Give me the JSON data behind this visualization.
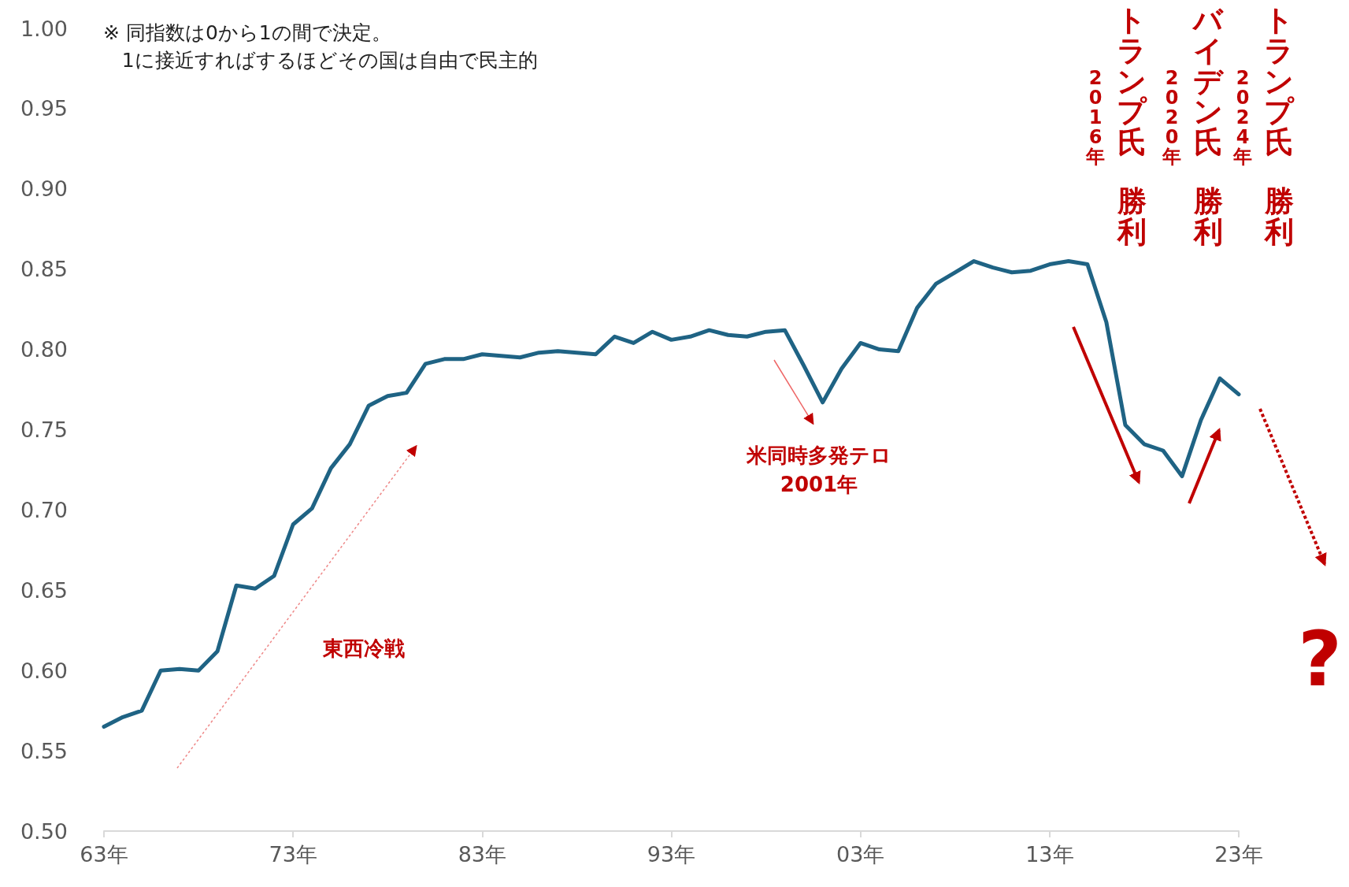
{
  "chart_data": {
    "type": "line",
    "categories": [
      "63年",
      null,
      null,
      null,
      null,
      null,
      null,
      null,
      null,
      null,
      "73年",
      null,
      null,
      null,
      null,
      null,
      null,
      null,
      null,
      null,
      "83年",
      null,
      null,
      null,
      null,
      null,
      null,
      null,
      null,
      null,
      "93年",
      null,
      null,
      null,
      null,
      null,
      null,
      null,
      null,
      null,
      "03年",
      null,
      null,
      null,
      null,
      null,
      null,
      null,
      null,
      null,
      "13年",
      null,
      null,
      null,
      null,
      null,
      null,
      null,
      null,
      null,
      "23年"
    ],
    "series": [
      {
        "color": "#1f6384",
        "values": [
          0.565,
          0.571,
          0.575,
          0.6,
          0.601,
          0.6,
          0.612,
          0.653,
          0.651,
          0.659,
          0.691,
          0.701,
          0.726,
          0.741,
          0.765,
          0.771,
          0.773,
          0.791,
          0.794,
          0.794,
          0.797,
          0.796,
          0.795,
          0.798,
          0.799,
          0.798,
          0.797,
          0.808,
          0.804,
          0.811,
          0.806,
          0.808,
          0.812,
          0.809,
          0.808,
          0.811,
          0.812,
          0.79,
          0.767,
          0.788,
          0.804,
          0.8,
          0.799,
          0.826,
          0.841,
          0.848,
          0.855,
          0.851,
          0.848,
          0.849,
          0.853,
          0.855,
          0.853,
          0.817,
          0.753,
          0.741,
          0.737,
          0.721,
          0.756,
          0.782,
          0.772
        ]
      }
    ],
    "ylim": [
      0.5,
      1
    ],
    "yticks": [
      {
        "value": 0.5,
        "label": "0.50"
      },
      {
        "value": 0.55,
        "label": "0.55"
      },
      {
        "value": 0.6,
        "label": "0.60"
      },
      {
        "value": 0.65,
        "label": "0.65"
      },
      {
        "value": 0.7,
        "label": "0.70"
      },
      {
        "value": 0.75,
        "label": "0.75"
      },
      {
        "value": 0.8,
        "label": "0.80"
      },
      {
        "value": 0.85,
        "label": "0.85"
      },
      {
        "value": 0.9,
        "label": "0.90"
      },
      {
        "value": 0.95,
        "label": "0.95"
      },
      {
        "value": 1,
        "label": "1.00"
      }
    ],
    "grid": false,
    "marker": "none",
    "line_style": "solid",
    "annotations": [
      "※ 同指数は0から1の間で決定。\n1に接近すればするほどその国は自由で民主的",
      "東西冷戦",
      "米同時多発テロ\n2001年",
      "トランプ氏",
      "勝利",
      "2016年",
      "バイデン氏",
      "勝利",
      "2020年",
      "トランプ氏",
      "勝利",
      "2024年",
      "?"
    ]
  }
}
